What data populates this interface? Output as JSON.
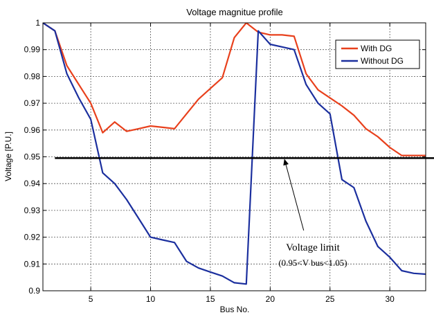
{
  "chart_data": {
    "type": "line",
    "title": "Voltage magnitue profile",
    "xlabel": "Bus No.",
    "ylabel": "Voltage [P.U.]",
    "xlim": [
      1,
      33
    ],
    "ylim": [
      0.9,
      1.0
    ],
    "xticks": [
      5,
      10,
      15,
      20,
      25,
      30
    ],
    "yticks": [
      0.9,
      0.91,
      0.92,
      0.93,
      0.94,
      0.95,
      0.96,
      0.97,
      0.98,
      0.99,
      1
    ],
    "grid": true,
    "legend_position": "top-right",
    "x": [
      1,
      2,
      3,
      4,
      5,
      6,
      7,
      8,
      9,
      10,
      11,
      12,
      13,
      14,
      15,
      16,
      17,
      18,
      19,
      20,
      21,
      22,
      23,
      24,
      25,
      26,
      27,
      28,
      29,
      30,
      31,
      32,
      33
    ],
    "series": [
      {
        "name": "With DG",
        "color": "#e8401c",
        "values": [
          1.0,
          0.997,
          0.984,
          0.977,
          0.97,
          0.959,
          0.963,
          0.9595,
          0.9605,
          0.9615,
          0.961,
          0.9605,
          0.966,
          0.9715,
          0.9755,
          0.9795,
          0.9945,
          1.0,
          0.9965,
          0.9955,
          0.9955,
          0.995,
          0.981,
          0.975,
          0.972,
          0.969,
          0.9655,
          0.9605,
          0.9575,
          0.9535,
          0.9505,
          0.9505,
          0.9505
        ]
      },
      {
        "name": "Without DG",
        "color": "#1b2f9e",
        "values": [
          1.0,
          0.997,
          0.981,
          0.972,
          0.964,
          0.944,
          0.94,
          0.934,
          0.927,
          0.92,
          0.919,
          0.918,
          0.911,
          0.9085,
          0.907,
          0.9055,
          0.903,
          0.9025,
          0.997,
          0.992,
          0.991,
          0.99,
          0.977,
          0.97,
          0.966,
          0.9415,
          0.9385,
          0.926,
          0.9165,
          0.9125,
          0.9075,
          0.9065,
          0.9062
        ]
      }
    ],
    "reference_line": {
      "value": 0.9495,
      "color": "#000000"
    },
    "annotation": {
      "label": "Voltage limit",
      "sublabel": "(0.95<V bus<1.05)",
      "arrow_to": {
        "x": 21.2,
        "y": 0.9495
      },
      "arrow_from": {
        "x": 22.8,
        "y": 0.9225
      }
    }
  }
}
